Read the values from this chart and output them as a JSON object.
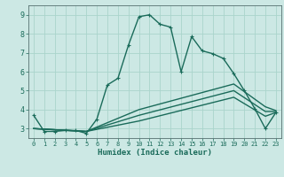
{
  "xlabel": "Humidex (Indice chaleur)",
  "bg_color": "#cce8e4",
  "line_color": "#1a6b5a",
  "grid_color": "#aad4cc",
  "xlim": [
    -0.5,
    23.5
  ],
  "ylim": [
    2.5,
    9.5
  ],
  "yticks": [
    3,
    4,
    5,
    6,
    7,
    8,
    9
  ],
  "xticks": [
    0,
    1,
    2,
    3,
    4,
    5,
    6,
    7,
    8,
    9,
    10,
    11,
    12,
    13,
    14,
    15,
    16,
    17,
    18,
    19,
    20,
    21,
    22,
    23
  ],
  "lines": [
    {
      "x": [
        0,
        1,
        2,
        3,
        4,
        5,
        6,
        7,
        8,
        9,
        10,
        11,
        12,
        13,
        14,
        15,
        16,
        17,
        18,
        19,
        20,
        21,
        22,
        23
      ],
      "y": [
        3.7,
        2.85,
        2.85,
        2.9,
        2.9,
        2.75,
        3.5,
        5.3,
        5.65,
        7.4,
        8.9,
        9.0,
        8.5,
        8.35,
        6.0,
        7.85,
        7.1,
        6.95,
        6.7,
        5.9,
        5.0,
        4.05,
        3.0,
        3.85
      ],
      "marker": true
    },
    {
      "x": [
        0,
        5,
        10,
        19,
        22,
        23
      ],
      "y": [
        3.0,
        2.85,
        3.4,
        4.65,
        3.65,
        3.85
      ],
      "marker": false
    },
    {
      "x": [
        0,
        5,
        10,
        19,
        22,
        23
      ],
      "y": [
        3.0,
        2.85,
        3.7,
        5.0,
        3.9,
        3.9
      ],
      "marker": false
    },
    {
      "x": [
        0,
        5,
        10,
        19,
        22,
        23
      ],
      "y": [
        3.0,
        2.85,
        4.0,
        5.35,
        4.15,
        3.95
      ],
      "marker": false
    }
  ]
}
